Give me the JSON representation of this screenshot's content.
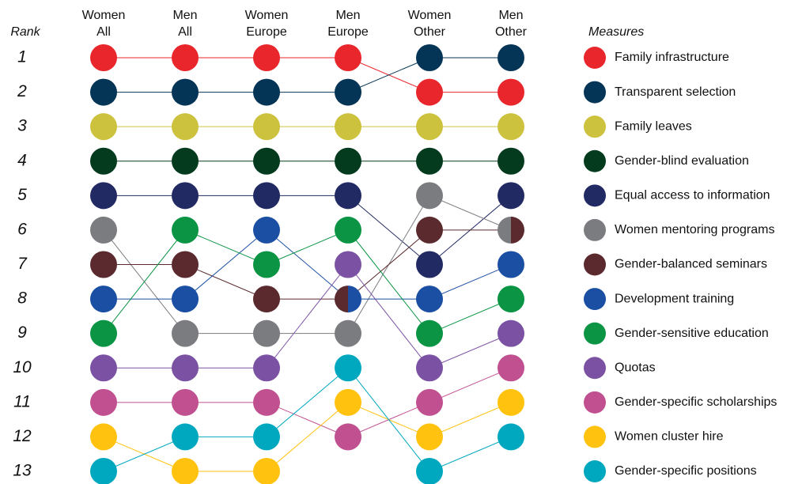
{
  "chart_data": {
    "type": "bump",
    "y_label": "Rank",
    "legend_title": "Measures",
    "categories": [
      [
        "Women",
        "All"
      ],
      [
        "Men",
        "All"
      ],
      [
        "Women",
        "Europe"
      ],
      [
        "Men",
        "Europe"
      ],
      [
        "Women",
        "Other"
      ],
      [
        "Men",
        "Other"
      ]
    ],
    "ylim": [
      1,
      13
    ],
    "yticks": [
      1,
      2,
      3,
      4,
      5,
      6,
      7,
      8,
      9,
      10,
      11,
      12,
      13
    ],
    "series": [
      {
        "name": "Family infrastructure",
        "color": "#e8262b",
        "values": [
          1,
          1,
          1,
          1,
          2,
          2
        ]
      },
      {
        "name": "Transparent selection",
        "color": "#053556",
        "values": [
          2,
          2,
          2,
          2,
          1,
          1
        ]
      },
      {
        "name": "Family leaves",
        "color": "#cdc23d",
        "values": [
          3,
          3,
          3,
          3,
          3,
          3
        ]
      },
      {
        "name": "Gender-blind evaluation",
        "color": "#043b1f",
        "values": [
          4,
          4,
          4,
          4,
          4,
          4
        ]
      },
      {
        "name": "Equal access to information",
        "color": "#222a63",
        "values": [
          5,
          5,
          5,
          5,
          7,
          5
        ]
      },
      {
        "name": "Women mentoring programs",
        "color": "#7b7c80",
        "values": [
          6,
          9,
          9,
          9,
          5,
          6
        ]
      },
      {
        "name": "Gender-balanced seminars",
        "color": "#5b2a2e",
        "values": [
          7,
          7,
          8,
          8,
          6,
          6
        ]
      },
      {
        "name": "Development training",
        "color": "#1b4fa3",
        "values": [
          8,
          8,
          6,
          8,
          8,
          7
        ]
      },
      {
        "name": "Gender-sensitive education",
        "color": "#0b9444",
        "values": [
          9,
          6,
          7,
          6,
          9,
          8
        ]
      },
      {
        "name": "Quotas",
        "color": "#7b52a3",
        "values": [
          10,
          10,
          10,
          7,
          10,
          9
        ]
      },
      {
        "name": "Gender-specific scholarships",
        "color": "#c0508f",
        "values": [
          11,
          11,
          11,
          12,
          11,
          10
        ]
      },
      {
        "name": "Women cluster hire",
        "color": "#ffc20e",
        "values": [
          12,
          13,
          13,
          11,
          12,
          11
        ]
      },
      {
        "name": "Gender-specific positions",
        "color": "#00a8bf",
        "values": [
          13,
          12,
          12,
          10,
          13,
          12
        ]
      }
    ]
  }
}
